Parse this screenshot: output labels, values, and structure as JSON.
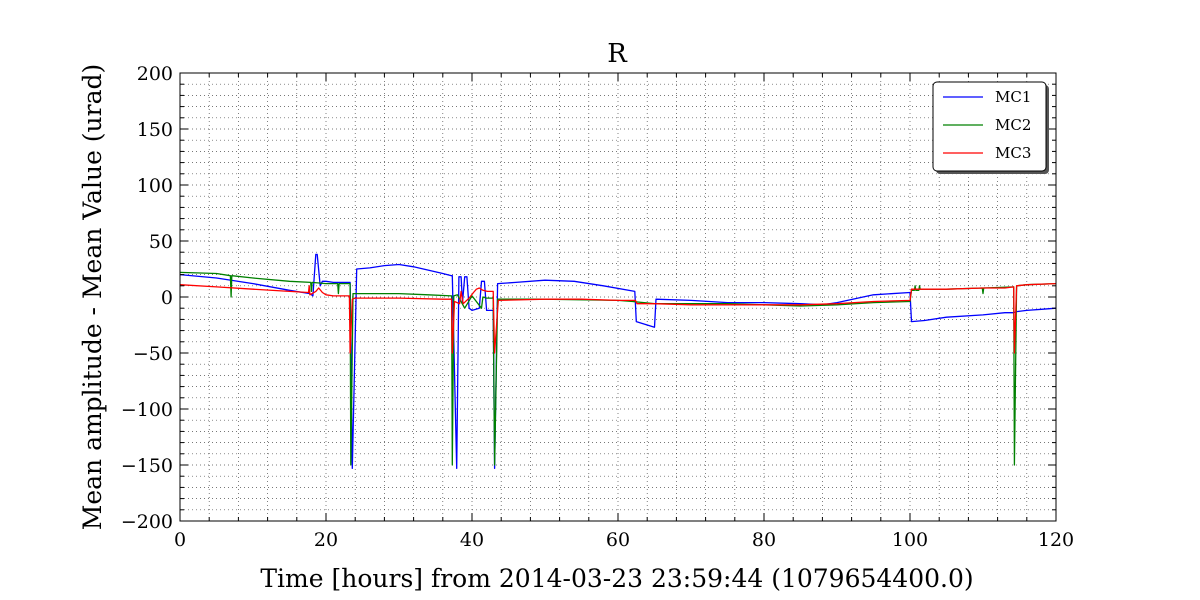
{
  "chart_data": {
    "type": "line",
    "title": "R",
    "xlabel": "Time [hours] from 2014-03-23 23:59:44 (1079654400.0)",
    "ylabel": "Mean amplitude - Mean Value (urad)",
    "xlim": [
      0,
      120
    ],
    "ylim": [
      -200,
      200
    ],
    "xticks": [
      0,
      20,
      40,
      60,
      80,
      100,
      120
    ],
    "xtick_labels": [
      "0",
      "20",
      "40",
      "60",
      "80",
      "100",
      "120"
    ],
    "yticks": [
      -200,
      -150,
      -100,
      -50,
      0,
      50,
      100,
      150,
      200
    ],
    "ytick_labels": [
      "−200",
      "−150",
      "−100",
      "−50",
      "0",
      "50",
      "100",
      "150",
      "200"
    ],
    "grid": true,
    "legend": "top-right",
    "series": [
      {
        "name": "MC1",
        "color": "#0000ff",
        "x": [
          0,
          5,
          10,
          15,
          17.8,
          18.2,
          18.6,
          18.8,
          19.2,
          19.5,
          20,
          21,
          22,
          23,
          23.3,
          23.6,
          24.2,
          26,
          28,
          30,
          32,
          34,
          36,
          37.2,
          37.3,
          37.9,
          38.2,
          38.5,
          38.7,
          39,
          39.3,
          39.6,
          40,
          41,
          41.3,
          41.7,
          42,
          42.9,
          43.1,
          43.5,
          46,
          50,
          54,
          58,
          62.3,
          62.5,
          65,
          65.2,
          70,
          75,
          80,
          85,
          88,
          90,
          95,
          100,
          100.2,
          102,
          105,
          110,
          113,
          114.2,
          114.6,
          116,
          118,
          120
        ],
        "y": [
          20,
          17,
          12,
          6,
          3,
          1,
          38,
          38,
          10,
          14,
          14,
          13,
          13,
          13,
          13,
          -153,
          25,
          26,
          28,
          29,
          27,
          24,
          21,
          19,
          19,
          -153,
          18,
          18,
          -5,
          18,
          18,
          -10,
          -12,
          -10,
          14,
          14,
          -12,
          -12,
          -153,
          12,
          13,
          15,
          14,
          10,
          5,
          -22,
          -27,
          -2,
          -3,
          -5,
          -5,
          -6,
          -7,
          -5,
          2,
          4,
          -22,
          -21,
          -18,
          -16,
          -14,
          -14,
          -13,
          -12,
          -11,
          -10
        ]
      },
      {
        "name": "MC2",
        "color": "#008000",
        "x": [
          0,
          5,
          6.9,
          7.0,
          7.1,
          10,
          15,
          17.9,
          18.0,
          18.1,
          20,
          21.6,
          21.7,
          21.8,
          23.3,
          23.4,
          23.7,
          26,
          30,
          34,
          37.2,
          37.3,
          37.5,
          38,
          39,
          40,
          41.3,
          41.5,
          42,
          42.9,
          43.1,
          43.5,
          50,
          60,
          62,
          65,
          70,
          75,
          80,
          85,
          90,
          95,
          100,
          100.2,
          100.6,
          100.7,
          100.8,
          101.2,
          101.3,
          101.4,
          105,
          109.9,
          110.0,
          110.1,
          114.2,
          114.3,
          114.6,
          116,
          120
        ],
        "y": [
          22,
          21,
          19,
          0,
          19,
          17,
          14,
          13,
          5,
          13,
          12,
          12,
          3,
          12,
          12,
          -150,
          3,
          3,
          3,
          2,
          1,
          -150,
          1,
          2,
          -10,
          1,
          -10,
          0,
          -1,
          -1,
          -150,
          -2,
          -2,
          -3,
          -4,
          -6,
          -6,
          -6,
          -7,
          -8,
          -7,
          -5,
          -4,
          6,
          6,
          10,
          6,
          6,
          10,
          7,
          7,
          8,
          3,
          8,
          9,
          -150,
          10,
          11,
          12
        ]
      },
      {
        "name": "MC3",
        "color": "#ff0000",
        "x": [
          0,
          5,
          10,
          15,
          17.6,
          17.7,
          17.8,
          18.6,
          19,
          19.5,
          20,
          21,
          23.2,
          23.3,
          23.6,
          24,
          30,
          36,
          37.2,
          37.3,
          37.6,
          38.3,
          38.5,
          38.8,
          39.6,
          40.2,
          40.6,
          41,
          41.5,
          42.1,
          42.9,
          43.1,
          43.6,
          50,
          55,
          60,
          62.4,
          62.6,
          65,
          70,
          75,
          80,
          85,
          90,
          95,
          100,
          100.2,
          105,
          110,
          113,
          114.2,
          114.3,
          114.6,
          116,
          120
        ],
        "y": [
          11,
          9,
          7,
          5,
          4,
          10,
          2,
          5,
          8,
          4,
          2,
          1,
          1,
          -50,
          -2,
          -1,
          -1,
          -2,
          -2,
          -50,
          -4,
          -6,
          5,
          -6,
          -1,
          4,
          7,
          8,
          6,
          5,
          5,
          -50,
          -3,
          -2,
          -2,
          -3,
          -3,
          -6,
          -6,
          -7,
          -7,
          -7,
          -7,
          -6,
          -4,
          -3,
          7,
          7,
          8,
          8,
          9,
          -50,
          10,
          11,
          12
        ]
      }
    ]
  }
}
